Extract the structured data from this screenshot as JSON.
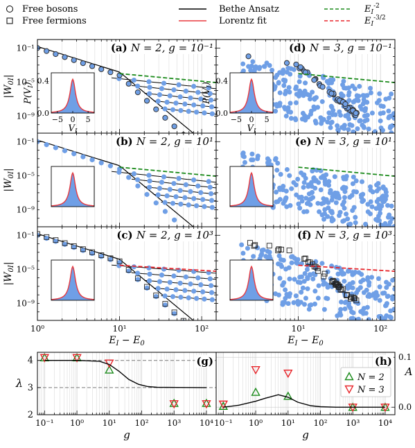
{
  "figure": {
    "legend_top": [
      {
        "label": "Free bosons",
        "marker": "circle"
      },
      {
        "label": "Free fermions",
        "marker": "square"
      },
      {
        "label": "Bethe Ansatz",
        "line": "solid",
        "color": "#000000"
      },
      {
        "label": "Lorentz fit",
        "line": "solid",
        "color": "#e8383d"
      },
      {
        "label": "E_I^{-2}",
        "line": "dashed",
        "color": "#1a8a1a"
      },
      {
        "label": "E_I^{-3/2}",
        "line": "dashed",
        "color": "#e8262b"
      }
    ],
    "colors": {
      "boson_fill": "#6f9fe6",
      "boson_edge": "#333333",
      "green": "#1a8a1a",
      "red": "#e8262b",
      "fit": "#e8383d",
      "grid": "#c8c8c8"
    }
  },
  "chart_data": [
    {
      "id": "a",
      "panel_label": "(a) N = 2, g = 10⁻¹",
      "type": "scatter",
      "x_scale": "log",
      "y_scale": "log",
      "xlim": [
        1,
        150
      ],
      "ylim": [
        1e-11,
        1
      ],
      "ylabel": "|W0I|",
      "xlabel": "",
      "N": 2,
      "g": 0.1,
      "power_law": "E_I^-2",
      "x_ticks": [
        "10⁰",
        "10¹",
        "10²"
      ],
      "y_ticks": [
        "10⁻¹",
        "10⁻⁵",
        "10⁻⁹"
      ],
      "inset": {
        "type": "area",
        "xlabel": "V_I",
        "ylabel": "P(V_I)",
        "x_ticks": [
          "−5",
          "0",
          "5"
        ],
        "y_ticks": [
          "0.0",
          "0.4"
        ],
        "ylim": [
          0,
          0.5
        ]
      },
      "bethe_branches": 5
    },
    {
      "id": "d",
      "panel_label": "(d) N = 3, g = 10⁻¹",
      "type": "scatter",
      "x_scale": "log",
      "y_scale": "log",
      "xlim": [
        1,
        150
      ],
      "ylim": [
        1e-11,
        1
      ],
      "N": 3,
      "g": 0.1,
      "power_law": "E_I^-2",
      "x_ticks": [
        "10⁰",
        "10¹",
        "10²"
      ],
      "inset": {
        "type": "area",
        "xlabel": "V_I",
        "ylabel": "P(V_I)",
        "x_ticks": [
          "−5",
          "0",
          "5"
        ],
        "y_ticks": [
          "0.0",
          "0.4"
        ]
      }
    },
    {
      "id": "b",
      "panel_label": "(b) N = 2, g = 10¹",
      "type": "scatter",
      "x_scale": "log",
      "y_scale": "log",
      "xlim": [
        1,
        150
      ],
      "ylim": [
        1e-11,
        1
      ],
      "ylabel": "|W0I|",
      "N": 2,
      "g": 10,
      "power_law": "E_I^-2",
      "y_ticks": [
        "10⁻¹",
        "10⁻⁵",
        "10⁻⁹"
      ],
      "bethe_branches": 5
    },
    {
      "id": "e",
      "panel_label": "(e) N = 3, g = 10¹",
      "type": "scatter",
      "x_scale": "log",
      "y_scale": "log",
      "xlim": [
        1,
        150
      ],
      "ylim": [
        1e-11,
        1
      ],
      "N": 3,
      "g": 10,
      "power_law": "E_I^-2"
    },
    {
      "id": "c",
      "panel_label": "(c) N = 2, g = 10³",
      "type": "scatter",
      "x_scale": "log",
      "y_scale": "log",
      "xlim": [
        1,
        150
      ],
      "ylim": [
        1e-11,
        1
      ],
      "ylabel": "|W0I|",
      "xlabel": "E_I − E_0",
      "N": 2,
      "g": 1000,
      "power_law": "E_I^-3/2",
      "x_ticks": [
        "10⁰",
        "10¹",
        "10²"
      ],
      "y_ticks": [
        "10⁻¹",
        "10⁻⁵",
        "10⁻⁹"
      ],
      "bethe_branches": 5
    },
    {
      "id": "f",
      "panel_label": "(f) N = 3, g = 10³",
      "type": "scatter",
      "x_scale": "log",
      "y_scale": "log",
      "xlim": [
        1,
        150
      ],
      "ylim": [
        1e-11,
        1
      ],
      "xlabel": "E_I − E_0",
      "N": 3,
      "g": 1000,
      "power_law": "E_I^-3/2",
      "x_ticks": [
        "10¹",
        "10²"
      ]
    },
    {
      "id": "g",
      "panel_label": "(g)",
      "type": "line",
      "x_scale": "log",
      "xlim": [
        0.06,
        20000
      ],
      "ylim": [
        2,
        4.3
      ],
      "xlabel": "g",
      "ylabel": "λ",
      "x_ticks": [
        "10⁻¹",
        "10⁰",
        "10¹",
        "10²",
        "10³",
        "10⁴"
      ],
      "y_ticks": [
        "2",
        "3",
        "4"
      ],
      "reference_lines": [
        4,
        3
      ],
      "series": [
        {
          "name": "N = 2",
          "marker": "triangle-up",
          "color": "#1a8a1a",
          "x": [
            0.1,
            1,
            10,
            1000,
            10000
          ],
          "y": [
            4.1,
            4.1,
            3.65,
            2.42,
            2.42
          ]
        },
        {
          "name": "N = 3",
          "marker": "triangle-down",
          "color": "#e8262b",
          "x": [
            0.1,
            1,
            10,
            1000,
            10000
          ],
          "y": [
            4.1,
            4.1,
            3.9,
            2.4,
            2.4
          ]
        },
        {
          "name": "",
          "line": "solid",
          "color": "#000000",
          "x": [
            0.1,
            1,
            5,
            10,
            20,
            40,
            80,
            150,
            300,
            10000
          ],
          "y": [
            4.0,
            4.0,
            3.97,
            3.85,
            3.6,
            3.3,
            3.12,
            3.04,
            3.01,
            3.0
          ]
        }
      ]
    },
    {
      "id": "h",
      "panel_label": "(h)",
      "type": "line",
      "x_scale": "log",
      "xlim": [
        0.06,
        20000
      ],
      "ylim": [
        -0.015,
        0.11
      ],
      "xlabel": "g",
      "ylabel": "A",
      "x_ticks": [
        "10⁻¹",
        "10⁰",
        "10¹",
        "10²",
        "10³",
        "10⁴"
      ],
      "y_ticks": [
        "0.0",
        "0.1"
      ],
      "legend": [
        "N = 2",
        "N = 3"
      ],
      "series": [
        {
          "name": "N = 2",
          "marker": "triangle-up",
          "color": "#1a8a1a",
          "x": [
            0.1,
            1,
            10,
            1000,
            10000
          ],
          "y": [
            0.002,
            0.03,
            0.022,
            0.0,
            0.0
          ]
        },
        {
          "name": "N = 3",
          "marker": "triangle-down",
          "color": "#e8262b",
          "x": [
            0.1,
            1,
            10,
            1000,
            10000
          ],
          "y": [
            0.006,
            0.075,
            0.068,
            0.0,
            0.0
          ]
        },
        {
          "name": "",
          "line": "solid",
          "color": "#000000",
          "x": [
            0.1,
            0.3,
            1,
            2,
            5,
            10,
            20,
            50,
            100,
            300,
            1000,
            10000
          ],
          "y": [
            0.0,
            0.004,
            0.012,
            0.018,
            0.025,
            0.02,
            0.01,
            0.003,
            0.001,
            0.0,
            0.0,
            0.0
          ]
        }
      ]
    }
  ]
}
